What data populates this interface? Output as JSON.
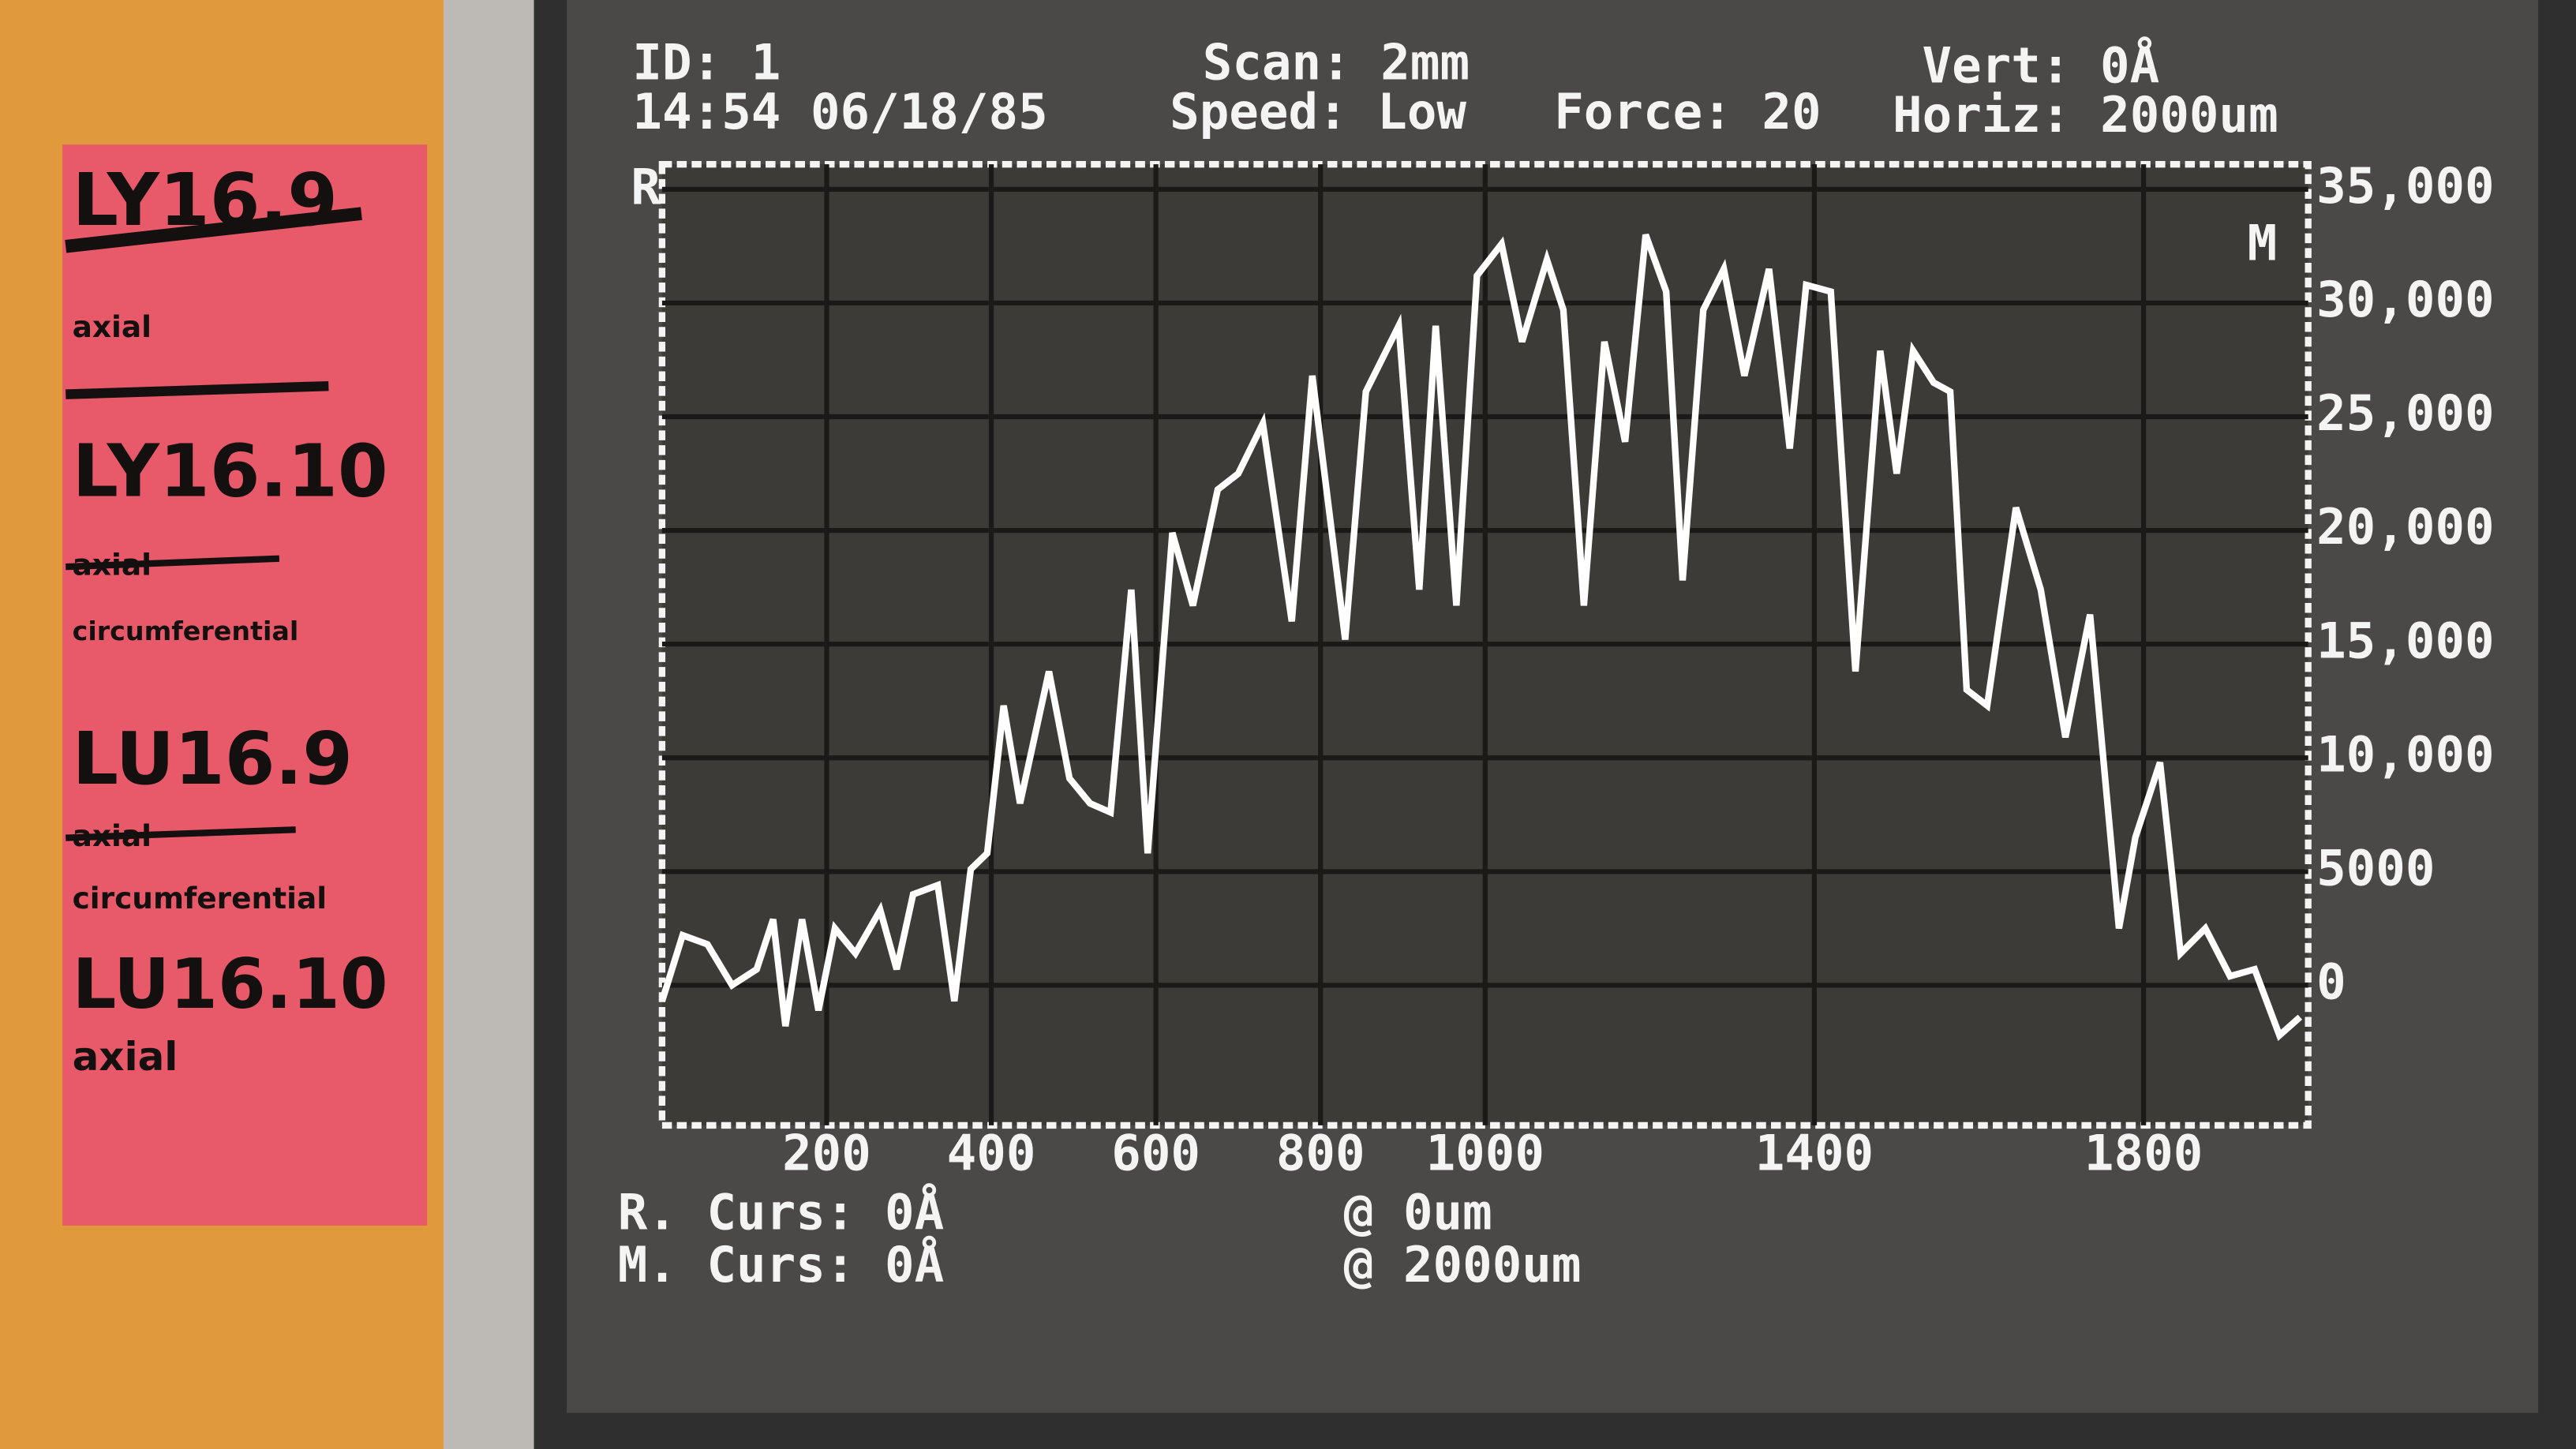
{
  "screen": {
    "id": "ID: 1",
    "scan": "Scan: 2mm",
    "vert": "Vert: 0Å",
    "timestamp": "14:54 06/18/85",
    "speed": "Speed: Low",
    "force": "Force: 20",
    "horiz": "Horiz: 2000um",
    "r_marker": "R",
    "m_marker": "M",
    "r_cursor": "R. Curs: 0Å",
    "r_position": "@ 0um",
    "m_cursor": "M. Curs: 0Å",
    "m_position": "@ 2000um"
  },
  "note": {
    "lines": [
      "LY16.9",
      "axial",
      "LY16.10",
      "axial",
      "circumferential",
      "LU16.9",
      "axial",
      "circumferential",
      "LU16.10",
      "axial"
    ]
  },
  "chart_data": {
    "type": "line",
    "color": "#ffffff",
    "grid": true,
    "x": [
      0,
      25,
      55,
      85,
      115,
      135,
      150,
      170,
      190,
      210,
      235,
      265,
      285,
      305,
      335,
      355,
      375,
      395,
      415,
      435,
      470,
      495,
      520,
      545,
      570,
      590,
      620,
      645,
      675,
      700,
      730,
      765,
      790,
      830,
      855,
      895,
      920,
      940,
      965,
      990,
      1020,
      1045,
      1075,
      1095,
      1120,
      1145,
      1170,
      1195,
      1220,
      1240,
      1265,
      1290,
      1315,
      1345,
      1370,
      1390,
      1420,
      1450,
      1480,
      1500,
      1520,
      1545,
      1565,
      1585,
      1610,
      1645,
      1675,
      1705,
      1735,
      1770,
      1790,
      1820,
      1845,
      1875,
      1905,
      1935,
      1965,
      1990
    ],
    "values": [
      -700,
      2200,
      1800,
      0,
      700,
      2900,
      -1800,
      2900,
      -1100,
      2500,
      1400,
      3300,
      700,
      4000,
      4400,
      -700,
      5100,
      5800,
      12300,
      8000,
      13800,
      9100,
      8000,
      7600,
      17400,
      5800,
      19900,
      16700,
      21800,
      22500,
      24700,
      16000,
      26800,
      15200,
      26100,
      29000,
      17400,
      29000,
      16700,
      31200,
      32600,
      28300,
      31900,
      29700,
      16700,
      28300,
      23900,
      33000,
      30500,
      17800,
      29700,
      31500,
      26800,
      31500,
      23600,
      30800,
      30500,
      13800,
      27900,
      22500,
      27900,
      26500,
      26100,
      13000,
      12300,
      21000,
      17400,
      10900,
      16300,
      2500,
      6500,
      9800,
      1400,
      2500,
      400,
      700,
      -2200,
      -1400
    ],
    "xlim": [
      0,
      2000
    ],
    "xticks": [
      200,
      400,
      600,
      800,
      1000,
      1400,
      1800
    ],
    "ylim": [
      -6160,
      36100
    ],
    "yticks": [
      0,
      5000,
      {
        "value": 10000,
        "label": "10,000"
      },
      {
        "value": 15000,
        "label": "15,000"
      },
      {
        "value": 20000,
        "label": "20,000"
      },
      {
        "value": 25000,
        "label": "25,000"
      },
      {
        "value": 30000,
        "label": "30,000"
      },
      {
        "value": 35000,
        "label": "35,000"
      }
    ]
  }
}
